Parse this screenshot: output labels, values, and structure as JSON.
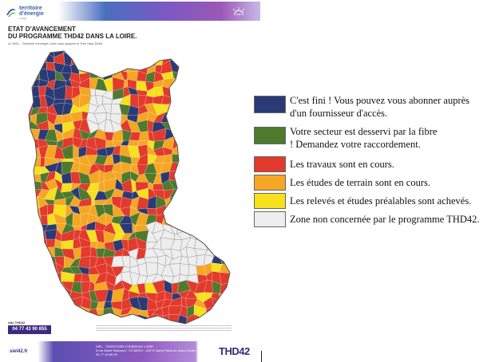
{
  "header": {
    "logo_line1": "territoire",
    "logo_line2": "d'énergie",
    "logo_line3": "LOIRE",
    "badge": "SIEL"
  },
  "title_line1": "ETAT D'AVANCEMENT",
  "title_line2": "DU PROGRAMME THD42 DANS LA LOIRE.",
  "subtitle": "Le SIEL - Territoire d'énergie Loire vous apporte le Très Haut Débit",
  "phone": {
    "label": "Allo THD42",
    "number": "04 77 43 90 855"
  },
  "footer": {
    "site": "siel42.fr",
    "col1": "Tél.\nnumérique\nInternet",
    "siel_line1": "SIEL · TERRITOIRE D'ÉNERGIE LOIRE",
    "siel_line2": "5 rue Albert Raimond - CS 80019 - 42274 Saint-Priest-en-Jarez Cedex",
    "siel_line3": "04 77 43 89 00",
    "logo": "THD42"
  },
  "colors": {
    "done": "#2b3a75",
    "served": "#4f7a2e",
    "works": "#e23a2c",
    "studies": "#f5a623",
    "surveys": "#f7e01c",
    "excluded": "#eeeeee"
  },
  "legend": [
    {
      "key": "done",
      "text": "C'est fini ! Vous pouvez vous abonner auprès d'un fournisseur d'accès."
    },
    {
      "key": "served",
      "text": "Votre secteur est desservi par la fibre ! Demandez votre raccordement."
    },
    {
      "key": "works",
      "text": "Les travaux sont en cours."
    },
    {
      "key": "studies",
      "text": "Les études de terrain sont en cours."
    },
    {
      "key": "surveys",
      "text": "Les relevés et études préalables sont achevés."
    },
    {
      "key": "excluded",
      "text": "Zone non concernée par le programme THD42."
    }
  ]
}
